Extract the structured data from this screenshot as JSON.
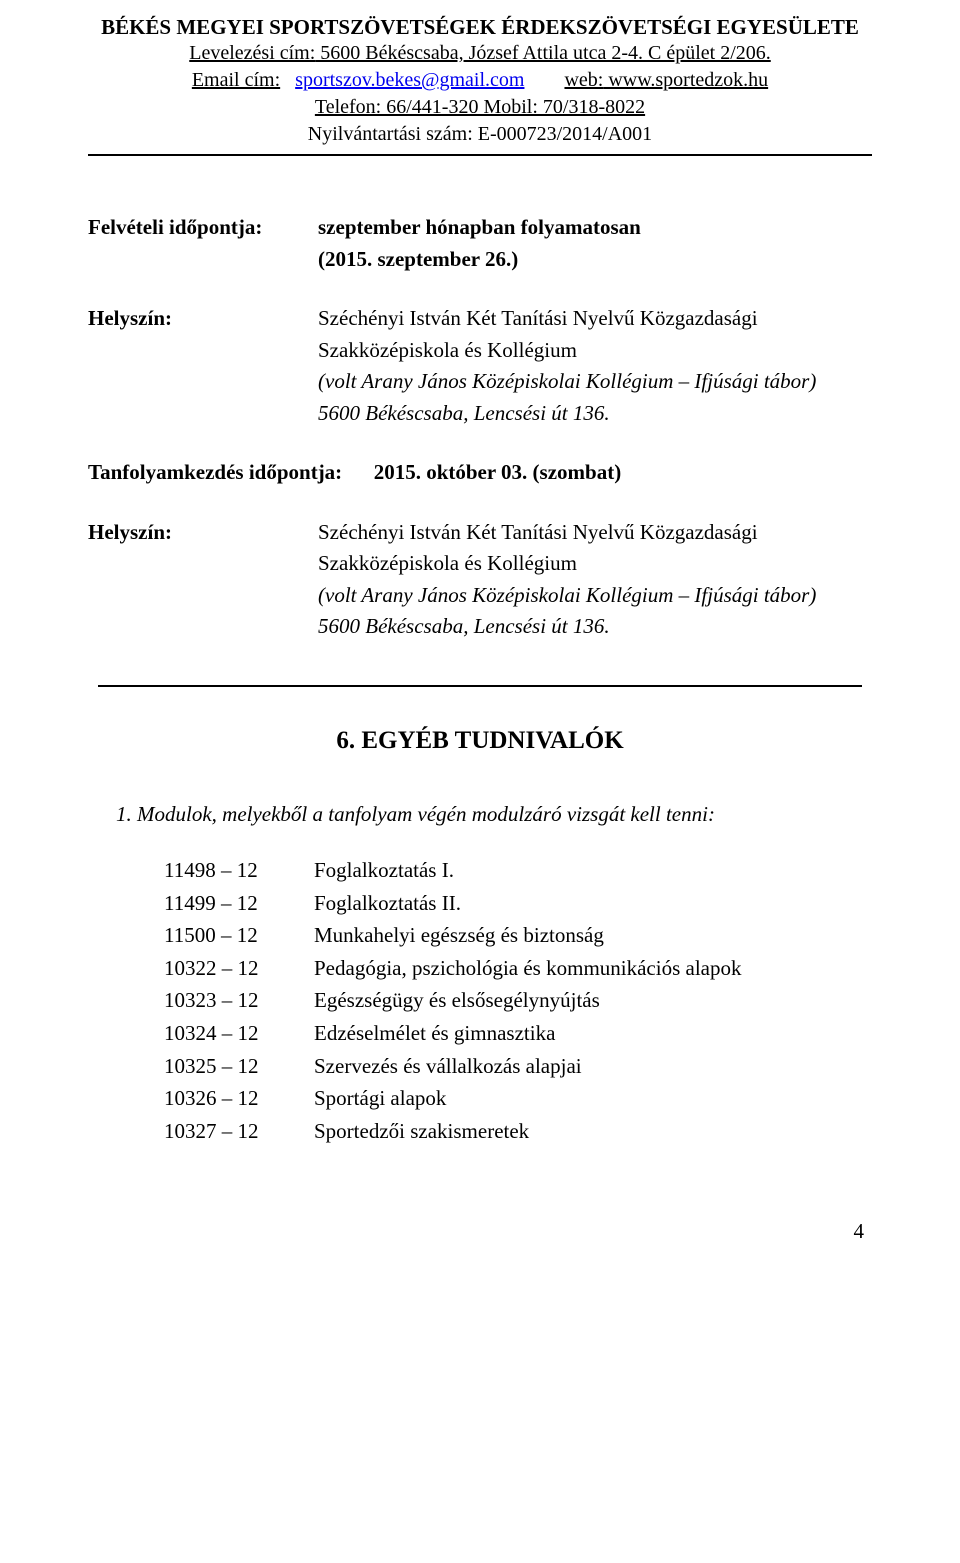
{
  "header": {
    "org_name": "BÉKÉS MEGYEI SPORTSZÖVETSÉGEK ÉRDEKSZÖVETSÉGI EGYESÜLETE",
    "mailing_label": "Levelezési cím:",
    "mailing_value": " 5600 Békéscsaba, József Attila utca 2-4. C épület 2/206.",
    "email_label": "Email cím:",
    "email_value": "sportszov.bekes@gmail.com",
    "web_label": "web:",
    "web_value": " www.sportedzok.hu",
    "phone_line": "Telefon: 66/441-320  Mobil: 70/318-8022",
    "reg_line": "Nyilvántartási szám: E-000723/2014/A001"
  },
  "enrollment": {
    "label": "Felvételi időpontja:",
    "value_line1": "szeptember hónapban folyamatosan",
    "value_line2": "(2015. szeptember 26.)"
  },
  "location1": {
    "label": "Helyszín:",
    "line1": "Széchényi István Két Tanítási Nyelvű Közgazdasági",
    "line2": "Szakközépiskola és Kollégium",
    "line3": "(volt Arany János Középiskolai Kollégium – Ifjúsági tábor)",
    "line4": "5600 Békéscsaba, Lencsési út 136."
  },
  "course_start": {
    "label": "Tanfolyamkezdés időpontja:",
    "value": "2015. október 03. (szombat)"
  },
  "location2": {
    "label": "Helyszín:",
    "line1": "Széchényi István Két Tanítási Nyelvű Közgazdasági",
    "line2": "Szakközépiskola és Kollégium",
    "line3": "(volt Arany János Középiskolai Kollégium – Ifjúsági tábor)",
    "line4": "5600 Békéscsaba, Lencsési út 136."
  },
  "section6": {
    "heading": "6. EGYÉB TUDNIVALÓK",
    "item1_text": "1. Modulok, melyekből a tanfolyam végén modulzáró vizsgát kell tenni:"
  },
  "modules": [
    {
      "code": "11498 – 12",
      "name": "Foglalkoztatás I."
    },
    {
      "code": "11499 – 12",
      "name": "Foglalkoztatás II."
    },
    {
      "code": "11500 – 12",
      "name": "Munkahelyi egészség és biztonság"
    },
    {
      "code": "10322 – 12",
      "name": "Pedagógia, pszichológia és kommunikációs alapok"
    },
    {
      "code": "10323 – 12",
      "name": "Egészségügy és elsősegélynyújtás"
    },
    {
      "code": "10324 – 12",
      "name": "Edzéselmélet és gimnasztika"
    },
    {
      "code": "10325 – 12",
      "name": "Szervezés és vállalkozás alapjai"
    },
    {
      "code": "10326 – 12",
      "name": "Sportági alapok"
    },
    {
      "code": "10327 – 12",
      "name": "Sportedzői szakismeretek"
    }
  ],
  "page_number": "4"
}
